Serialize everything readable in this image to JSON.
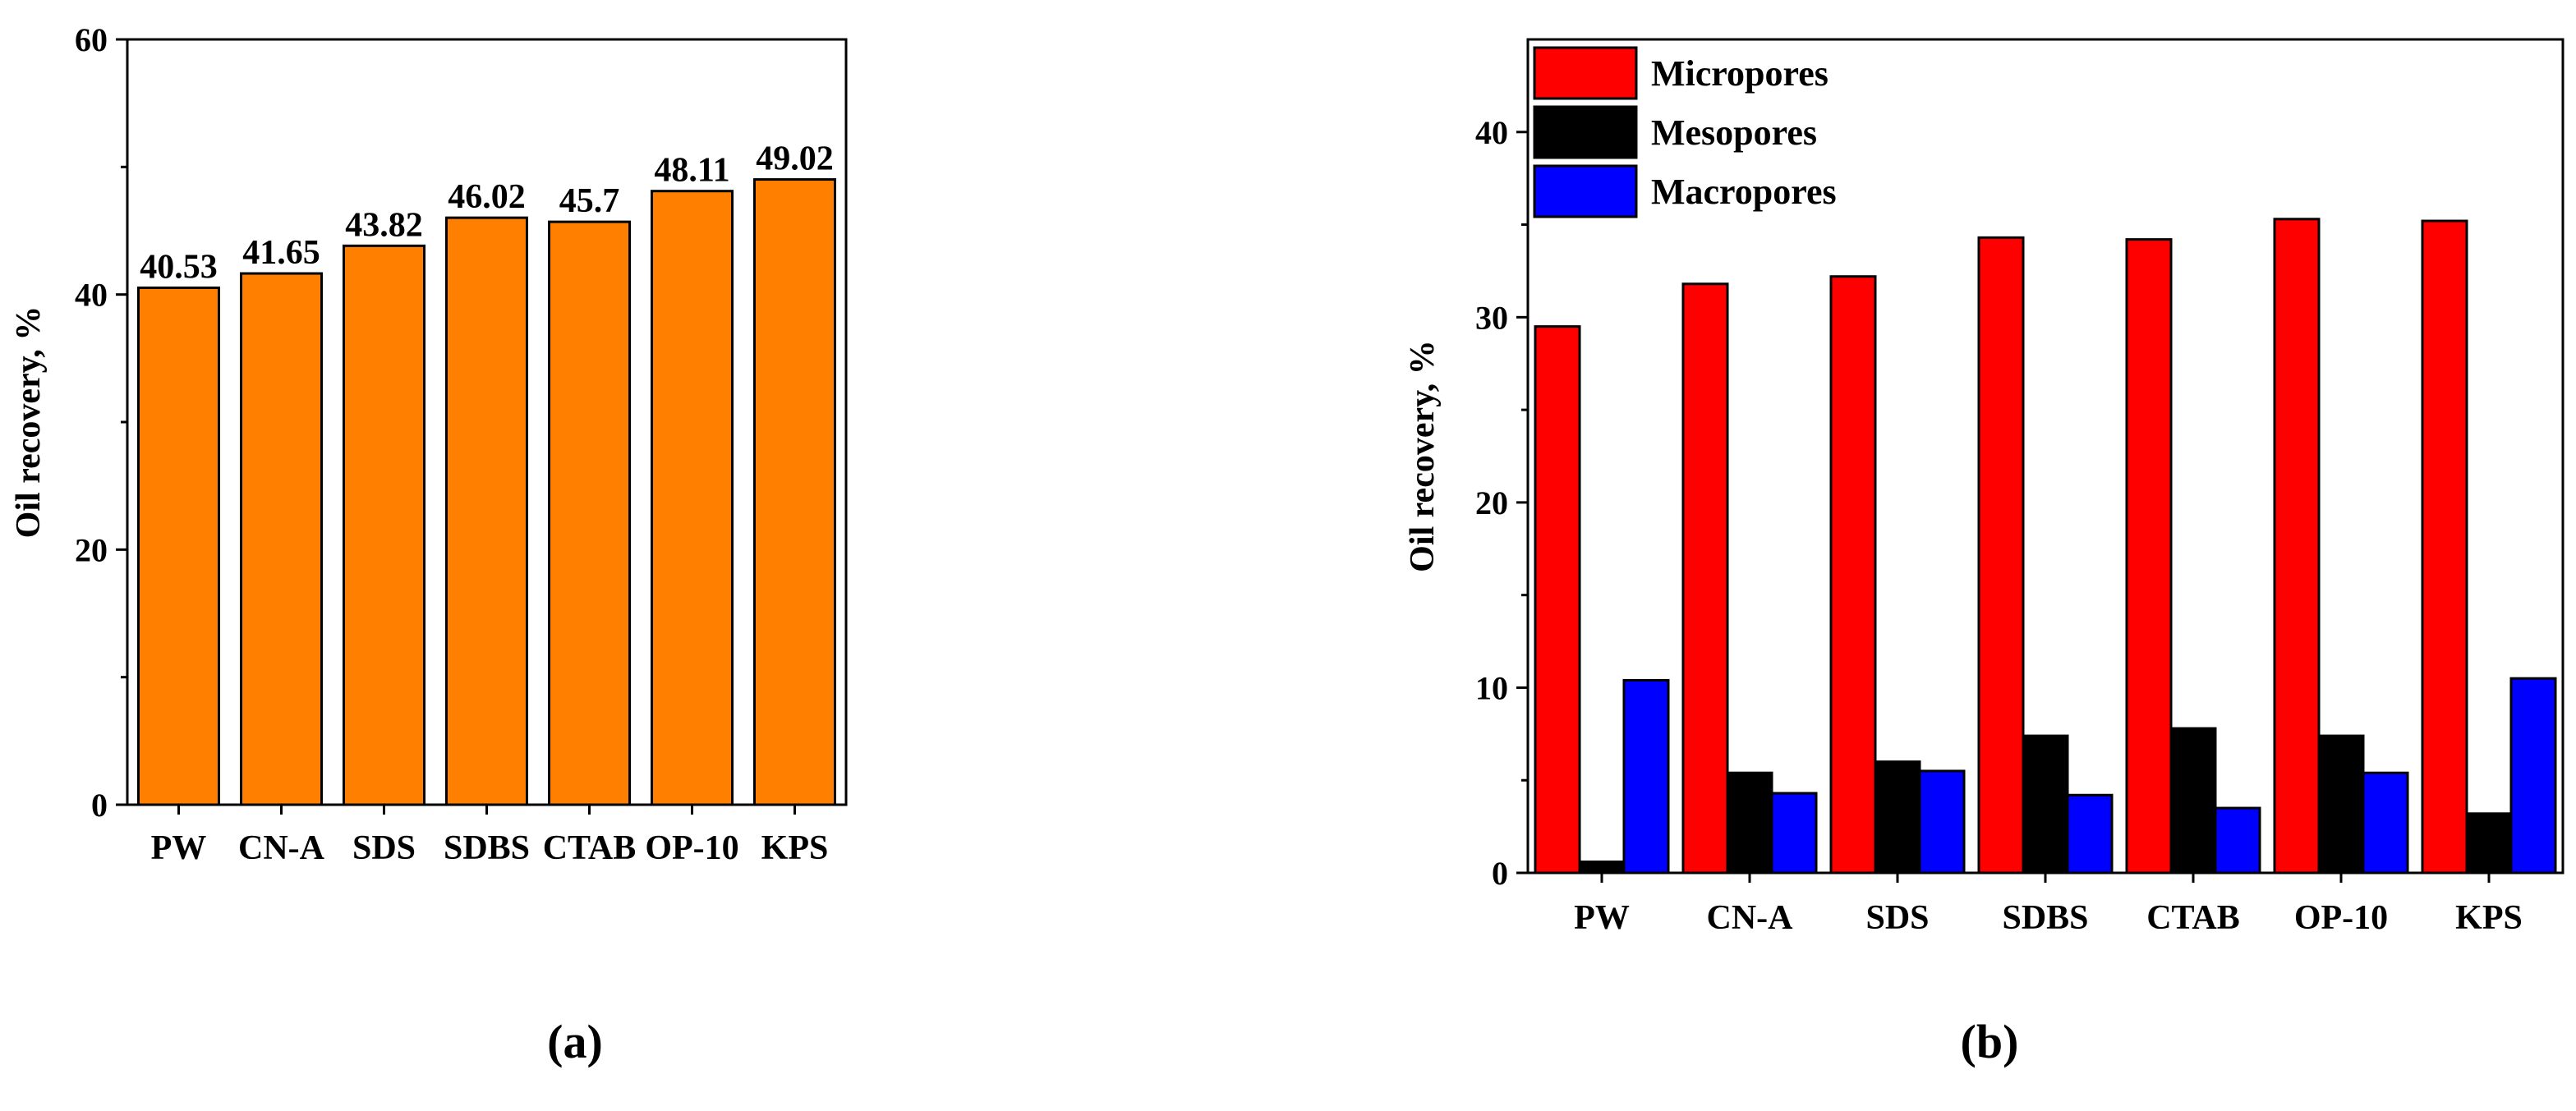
{
  "chart_data": [
    {
      "type": "bar",
      "panel_label": "(a)",
      "title": "",
      "xlabel": "",
      "ylabel": "Oil recovery, %",
      "categories": [
        "PW",
        "CN-A",
        "SDS",
        "SDBS",
        "CTAB",
        "OP-10",
        "KPS"
      ],
      "values": [
        40.53,
        41.65,
        43.82,
        46.02,
        45.7,
        48.11,
        49.02
      ],
      "value_labels": [
        "40.53",
        "41.65",
        "43.82",
        "46.02",
        "45.7",
        "48.11",
        "49.02"
      ],
      "ylim": [
        0,
        60
      ],
      "yticks": [
        0,
        20,
        40,
        60
      ],
      "color": "#FF8000",
      "grid": false
    },
    {
      "type": "bar",
      "panel_label": "(b)",
      "title": "",
      "xlabel": "",
      "ylabel": "Oil recovery, %",
      "categories": [
        "PW",
        "CN-A",
        "SDS",
        "SDBS",
        "CTAB",
        "OP-10",
        "KPS"
      ],
      "series": [
        {
          "name": "Micropores",
          "color": "#FF0000",
          "values": [
            29.5,
            31.8,
            32.2,
            34.3,
            34.2,
            35.3,
            35.2
          ]
        },
        {
          "name": "Mesopores",
          "color": "#000000",
          "values": [
            0.6,
            5.4,
            6.0,
            7.4,
            7.8,
            7.4,
            3.2
          ]
        },
        {
          "name": "Macropores",
          "color": "#0000FF",
          "values": [
            10.4,
            4.3,
            5.5,
            4.2,
            3.5,
            5.4,
            10.5
          ]
        }
      ],
      "ylim": [
        0,
        45
      ],
      "yticks": [
        0,
        10,
        20,
        30,
        40
      ],
      "legend_position": "top-left",
      "grid": false
    }
  ]
}
